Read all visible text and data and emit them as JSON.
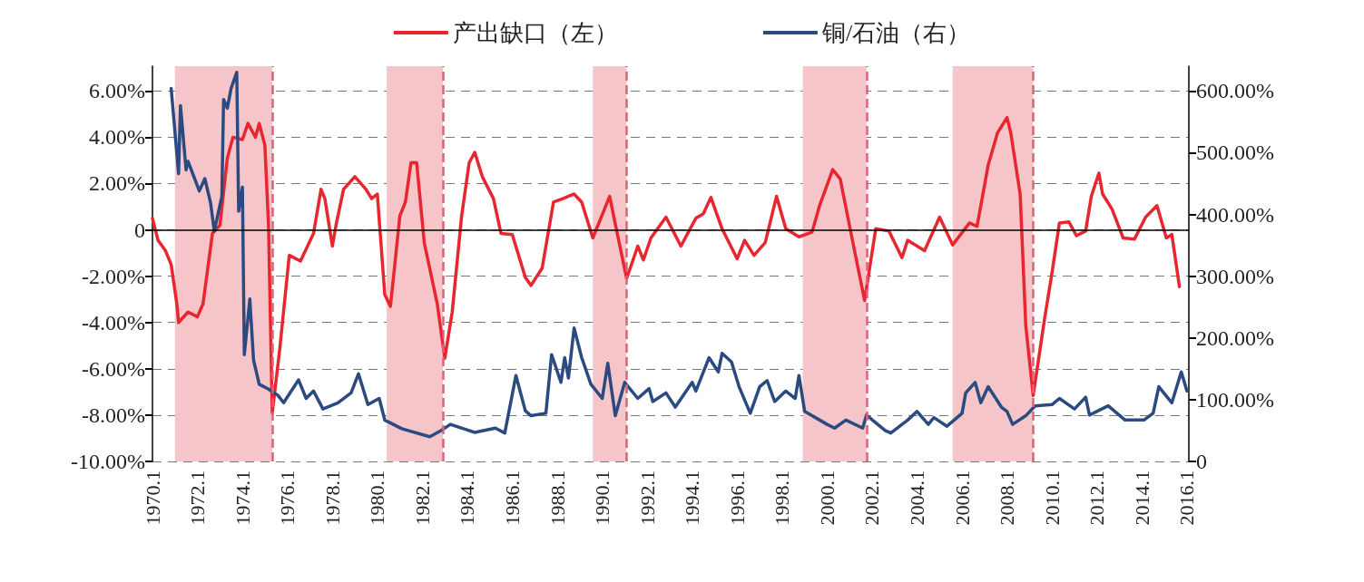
{
  "chart_data": {
    "type": "line",
    "legend": "top",
    "grid": "y",
    "marker": "none",
    "line_style": "solid",
    "xlim": [
      "1970-01",
      "2016-02"
    ],
    "xticks": [
      {
        "value": "1970-01",
        "label": "1970.1"
      },
      {
        "value": "1972-01",
        "label": "1972.1"
      },
      {
        "value": "1974-01",
        "label": "1974.1"
      },
      {
        "value": "1976-01",
        "label": "1976.1"
      },
      {
        "value": "1978-01",
        "label": "1978.1"
      },
      {
        "value": "1980-01",
        "label": "1980.1"
      },
      {
        "value": "1982-01",
        "label": "1982.1"
      },
      {
        "value": "1984-01",
        "label": "1984.1"
      },
      {
        "value": "1986-01",
        "label": "1986.1"
      },
      {
        "value": "1988-01",
        "label": "1988.1"
      },
      {
        "value": "1990-01",
        "label": "1990.1"
      },
      {
        "value": "1992-01",
        "label": "1992.1"
      },
      {
        "value": "1994-01",
        "label": "1994.1"
      },
      {
        "value": "1996-01",
        "label": "1996.1"
      },
      {
        "value": "1998-01",
        "label": "1998.1"
      },
      {
        "value": "2000-01",
        "label": "2000.1"
      },
      {
        "value": "2002-01",
        "label": "2002.1"
      },
      {
        "value": "2004-01",
        "label": "2004.1"
      },
      {
        "value": "2006-01",
        "label": "2006.1"
      },
      {
        "value": "2008-01",
        "label": "2008.1"
      },
      {
        "value": "2010-01",
        "label": "2010.1"
      },
      {
        "value": "2012-01",
        "label": "2012.1"
      },
      {
        "value": "2014-01",
        "label": "2014.1"
      },
      {
        "value": "2016-01",
        "label": "2016.1"
      }
    ],
    "ylim": [
      -10,
      7.07
    ],
    "yticks": [
      {
        "value": -10,
        "label": "-10.00%"
      },
      {
        "value": -8,
        "label": "-8.00%"
      },
      {
        "value": -6,
        "label": "-6.00%"
      },
      {
        "value": -4,
        "label": "-4.00%"
      },
      {
        "value": -2,
        "label": "-2.00%"
      },
      0,
      {
        "value": 2,
        "label": "2.00%"
      },
      {
        "value": 4,
        "label": "4.00%"
      },
      {
        "value": 6,
        "label": "6.00%"
      }
    ],
    "y2lim": [
      0,
      640
    ],
    "y2ticks": [
      0,
      {
        "value": 100,
        "label": "100.00%"
      },
      {
        "value": 200,
        "label": "200.00%"
      },
      {
        "value": 300,
        "label": "300.00%"
      },
      {
        "value": 400,
        "label": "400.00%"
      },
      {
        "value": 500,
        "label": "500.00%"
      },
      {
        "value": 600,
        "label": "600.00%"
      }
    ],
    "ref_lines": [
      {
        "axis": "y",
        "value": 0,
        "color": "#000000",
        "line_style": "solid"
      },
      {
        "axis": "x",
        "value": "1975-05",
        "color": "#e0607a",
        "line_style": "dashed"
      },
      {
        "axis": "x",
        "value": "1982-12",
        "color": "#e0607a",
        "line_style": "dashed"
      },
      {
        "axis": "x",
        "value": "1991-02",
        "color": "#e0607a",
        "line_style": "dashed"
      },
      {
        "axis": "x",
        "value": "2001-10",
        "color": "#e0607a",
        "line_style": "dashed"
      },
      {
        "axis": "x",
        "value": "2009-03",
        "color": "#e0607a",
        "line_style": "dashed"
      }
    ],
    "bands": [
      {
        "axis": "x",
        "from": "1971-01",
        "to": "1975-05",
        "color": "#f5c5ca"
      },
      {
        "axis": "x",
        "from": "1980-06",
        "to": "1982-12",
        "color": "#f5c5ca"
      },
      {
        "axis": "x",
        "from": "1989-08",
        "to": "1991-02",
        "color": "#f5c5ca"
      },
      {
        "axis": "x",
        "from": "1998-12",
        "to": "2001-10",
        "color": "#f5c5ca"
      },
      {
        "axis": "x",
        "from": "2005-08",
        "to": "2009-03",
        "color": "#f5c5ca"
      }
    ],
    "series": [
      {
        "name": "产出缺口（左）",
        "color": "#e8262f",
        "x": [
          "1970-01",
          "1970-04",
          "1970-08",
          "1970-11",
          "1971-02",
          "1971-03",
          "1971-08",
          "1972-01",
          "1972-04",
          "1972-09",
          "1973-01",
          "1973-05",
          "1973-08",
          "1974-01",
          "1974-04",
          "1974-08",
          "1974-10",
          "1975-01",
          "1975-03",
          "1975-05",
          "1975-09",
          "1976-02",
          "1976-08",
          "1977-03",
          "1977-07",
          "1977-09",
          "1978-01",
          "1978-03",
          "1978-07",
          "1979-01",
          "1979-07",
          "1979-10",
          "1980-01",
          "1980-05",
          "1980-08",
          "1981-01",
          "1981-04",
          "1981-07",
          "1981-10",
          "1982-02",
          "1982-09",
          "1983-01",
          "1983-05",
          "1983-10",
          "1984-02",
          "1984-05",
          "1984-09",
          "1985-03",
          "1985-07",
          "1986-01",
          "1986-08",
          "1986-11",
          "1987-05",
          "1987-11",
          "1988-04",
          "1988-10",
          "1989-02",
          "1989-08",
          "1990-05",
          "1990-09",
          "1991-02",
          "1991-08",
          "1991-11",
          "1992-03",
          "1992-11",
          "1993-07",
          "1994-03",
          "1994-07",
          "1994-11",
          "1995-05",
          "1996-01",
          "1996-05",
          "1996-10",
          "1997-04",
          "1997-10",
          "1998-03",
          "1998-10",
          "1999-05",
          "1999-09",
          "2000-04",
          "2000-08",
          "2001-01",
          "2001-09",
          "2002-03",
          "2002-10",
          "2003-05",
          "2003-08",
          "2004-05",
          "2005-01",
          "2005-08",
          "2006-05",
          "2006-09",
          "2007-03",
          "2007-08",
          "2008-01",
          "2008-03",
          "2008-08",
          "2008-11",
          "2009-03",
          "2009-09",
          "2010-01",
          "2010-05",
          "2010-10",
          "2011-02",
          "2011-07",
          "2011-10",
          "2012-02",
          "2012-04",
          "2012-09",
          "2013-03",
          "2013-09",
          "2014-03",
          "2014-09",
          "2015-02",
          "2015-05",
          "2015-09"
        ],
        "values": [
          0.5,
          -0.45,
          -0.9,
          -1.5,
          -3.2,
          -4.0,
          -3.55,
          -3.75,
          -3.2,
          -0.15,
          0.2,
          3.1,
          4.0,
          3.9,
          4.6,
          4.0,
          4.6,
          3.65,
          0.2,
          -7.9,
          -5.1,
          -1.1,
          -1.35,
          -0.15,
          1.75,
          1.35,
          -0.7,
          0.2,
          1.75,
          2.3,
          1.75,
          1.35,
          1.55,
          -2.8,
          -3.3,
          0.6,
          1.2,
          2.9,
          2.9,
          -0.55,
          -3.2,
          -5.55,
          -3.55,
          0.6,
          2.9,
          3.35,
          2.3,
          1.35,
          -0.15,
          -0.2,
          -2.05,
          -2.4,
          -1.65,
          1.2,
          1.35,
          1.55,
          1.2,
          -0.35,
          1.45,
          -0.15,
          -2.1,
          -0.7,
          -1.3,
          -0.35,
          0.55,
          -0.7,
          0.5,
          0.7,
          1.4,
          0.05,
          -1.25,
          -0.45,
          -1.1,
          -0.55,
          1.45,
          0.05,
          -0.3,
          -0.1,
          1.05,
          2.6,
          2.2,
          0.15,
          -3.05,
          0.05,
          -0.05,
          -1.2,
          -0.45,
          -0.9,
          0.55,
          -0.65,
          0.3,
          0.15,
          2.8,
          4.2,
          4.85,
          4.2,
          1.55,
          -4.15,
          -7.15,
          -3.85,
          -1.85,
          0.3,
          0.35,
          -0.25,
          -0.05,
          1.45,
          2.45,
          1.55,
          0.9,
          -0.35,
          -0.4,
          0.55,
          1.05,
          -0.35,
          -0.2,
          -2.45
        ]
      },
      {
        "name": "铜/石油（右）",
        "color": "#2b4a80",
        "axis": "y2",
        "x": [
          "1970-11",
          "1971-03",
          "1971-04",
          "1971-07",
          "1971-08",
          "1972-02",
          "1972-05",
          "1972-08",
          "1972-10",
          "1973-02",
          "1973-03",
          "1973-05",
          "1973-07",
          "1973-10",
          "1973-11",
          "1974-01",
          "1974-02",
          "1974-05",
          "1974-07",
          "1974-10",
          "1975-03",
          "1975-08",
          "1975-11",
          "1976-07",
          "1976-11",
          "1977-03",
          "1977-08",
          "1978-04",
          "1978-11",
          "1979-03",
          "1979-08",
          "1980-02",
          "1980-05",
          "1981-02",
          "1982-05",
          "1982-11",
          "1983-04",
          "1984-05",
          "1985-04",
          "1985-09",
          "1986-03",
          "1986-08",
          "1986-11",
          "1987-07",
          "1987-10",
          "1988-03",
          "1988-05",
          "1988-07",
          "1988-10",
          "1989-02",
          "1989-07",
          "1990-01",
          "1990-04",
          "1990-08",
          "1991-01",
          "1991-08",
          "1992-02",
          "1992-04",
          "1992-11",
          "1993-04",
          "1994-01",
          "1994-03",
          "1994-10",
          "1995-03",
          "1995-05",
          "1995-10",
          "1996-02",
          "1996-08",
          "1997-01",
          "1997-05",
          "1997-09",
          "1998-03",
          "1998-08",
          "1998-10",
          "1999-01",
          "2000-01",
          "2000-05",
          "2000-11",
          "2001-08",
          "2001-10",
          "2002-08",
          "2002-11",
          "2003-08",
          "2004-01",
          "2004-07",
          "2004-10",
          "2005-05",
          "2006-01",
          "2006-03",
          "2006-08",
          "2006-11",
          "2007-03",
          "2007-10",
          "2008-01",
          "2008-04",
          "2008-11",
          "2009-04",
          "2010-01",
          "2010-05",
          "2011-01",
          "2011-07",
          "2011-09",
          "2012-07",
          "2013-04",
          "2014-02",
          "2014-07",
          "2014-10",
          "2015-05",
          "2015-10",
          "2016-01"
        ],
        "values": [
          604,
          466,
          576,
          472,
          486,
          438,
          458,
          419,
          373,
          429,
          586,
          572,
          604,
          630,
          405,
          444,
          173,
          263,
          164,
          125,
          117,
          107,
          95,
          132,
          102,
          114,
          85,
          95,
          111,
          142,
          92,
          102,
          67,
          53,
          40,
          50,
          60,
          47,
          54,
          46,
          139,
          82,
          74,
          78,
          173,
          128,
          168,
          135,
          216,
          168,
          125,
          102,
          159,
          74,
          128,
          102,
          118,
          97,
          111,
          88,
          128,
          114,
          168,
          145,
          175,
          161,
          121,
          78,
          121,
          131,
          97,
          114,
          102,
          139,
          81,
          60,
          54,
          67,
          54,
          75,
          50,
          46,
          67,
          81,
          60,
          71,
          57,
          78,
          111,
          128,
          95,
          121,
          88,
          81,
          60,
          74,
          90,
          92,
          102,
          85,
          104,
          75,
          90,
          67,
          67,
          78,
          121,
          95,
          145,
          114
        ]
      }
    ]
  }
}
